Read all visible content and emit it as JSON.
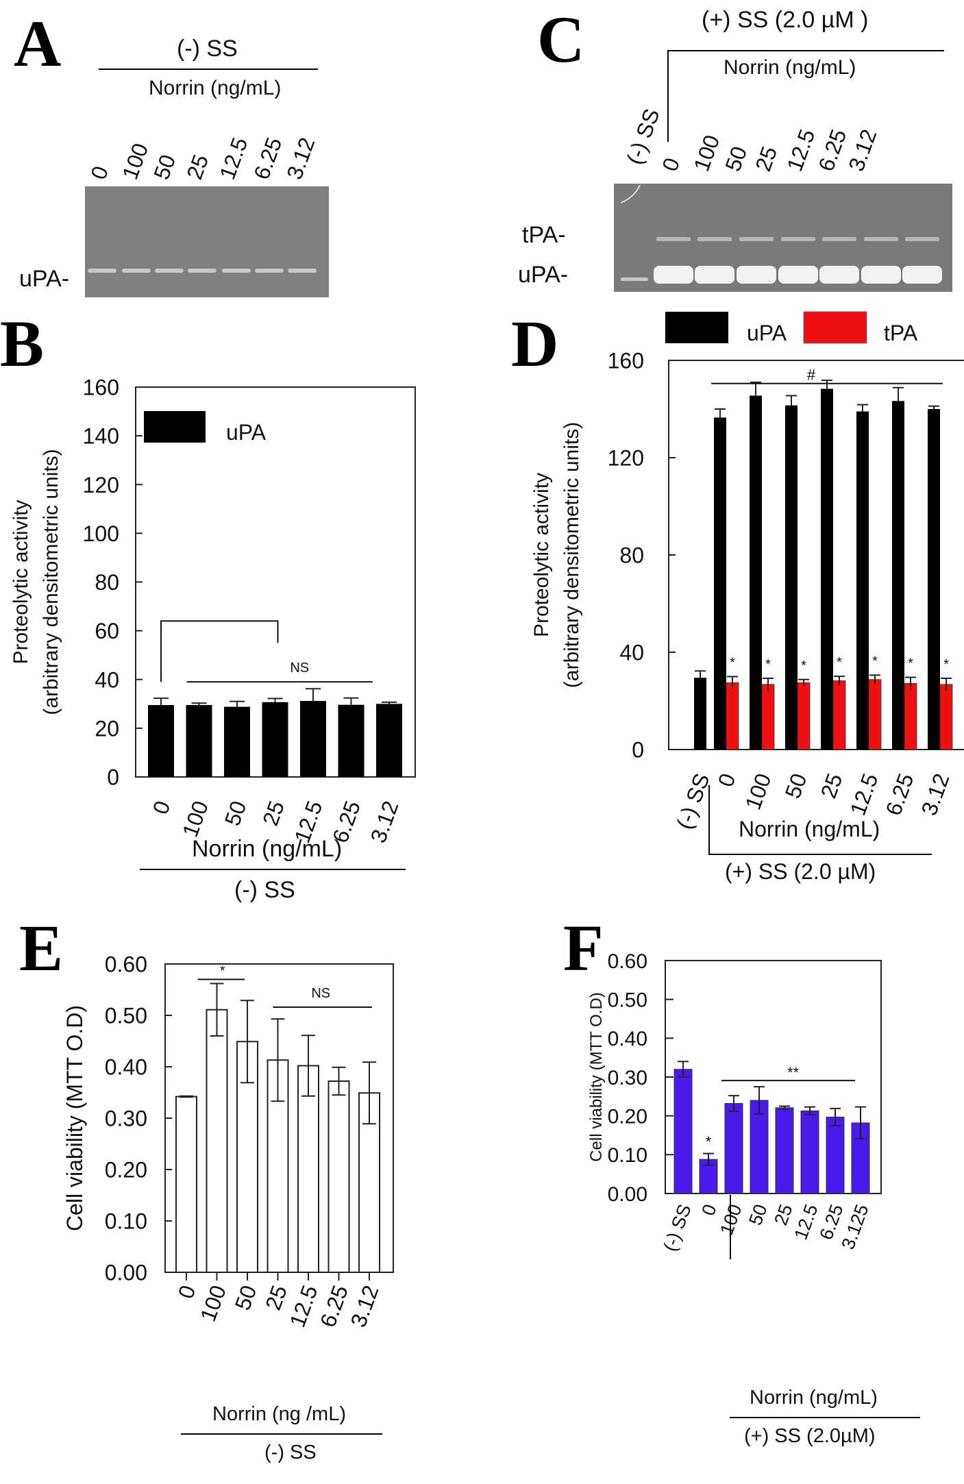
{
  "panels": {
    "A": {
      "letter": "A",
      "group_label": "(-) SS",
      "norrin_label": "Norrin (ng/mL)",
      "lanes": [
        "0",
        "100",
        "50",
        "25",
        "12.5",
        "6.25",
        "3.12"
      ],
      "band_label": "uPA-",
      "gel_color": "#808080"
    },
    "C": {
      "letter": "C",
      "group_label": "(+) SS (2.0 µM )",
      "norrin_label": "Norrin (ng/mL)",
      "control_lane": "(-) SS",
      "lanes": [
        "0",
        "100",
        "50",
        "25",
        "12.5",
        "6.25",
        "3.12"
      ],
      "band_labels": [
        "tPA-",
        "uPA-"
      ],
      "gel_color": "#7a7a7a"
    },
    "B": {
      "letter": "B",
      "group_label": "(-) SS",
      "norrin_label": "Norrin (ng/mL)"
    },
    "D": {
      "letter": "D",
      "group_label": "(+) SS (2.0 µM)",
      "norrin_label": "Norrin (ng/mL)"
    },
    "E": {
      "letter": "E",
      "group_label": "(-) SS",
      "norrin_label": "Norrin (ng /mL)"
    },
    "F": {
      "letter": "F",
      "group_label": "(+) SS (2.0µM)",
      "norrin_label": "Norrin (ng/mL)"
    }
  },
  "colors": {
    "black_bar": "#000000",
    "red_bar": "#ee1111",
    "blue_bar": "#4a1ae8",
    "open_bar": "#ffffff"
  },
  "chart_data": [
    {
      "id": "B",
      "type": "bar",
      "title": "",
      "xlabel": "Norrin (ng/mL)",
      "ylabel": "Proteolytic activity\n(arbitrary densitometric units)",
      "ylabel_lines": [
        "Proteolytic activity",
        "(arbitrary densitometric units)"
      ],
      "categories": [
        "0",
        "100",
        "50",
        "25",
        "12.5",
        "6.25",
        "3.12"
      ],
      "ylim": [
        0,
        160
      ],
      "yticks": [
        "0",
        "20",
        "40",
        "60",
        "80",
        "100",
        "120",
        "140",
        "160"
      ],
      "legend": {
        "position": "top-left",
        "entries": [
          "uPA"
        ]
      },
      "grid": false,
      "series": [
        {
          "name": "uPA",
          "values": [
            29.5,
            29.5,
            28.8,
            30.7,
            31.2,
            29.6,
            30.0
          ],
          "errors": [
            2.8,
            0.8,
            2.2,
            1.5,
            5.0,
            2.8,
            0.7
          ]
        }
      ],
      "annotations": [
        {
          "text": "NS",
          "span": [
            "100",
            "3.12"
          ]
        },
        {
          "text": "bracket",
          "span": [
            "0",
            "25"
          ]
        }
      ]
    },
    {
      "id": "D",
      "type": "bar",
      "title": "",
      "xlabel": "Norrin (ng/mL)",
      "ylabel_lines": [
        "Proteolytic activity",
        "(arbitrary densitometric units)"
      ],
      "categories": [
        "(-) SS",
        "0",
        "100",
        "50",
        "25",
        "12.5",
        "6.25",
        "3.12"
      ],
      "ylim": [
        0,
        160
      ],
      "yticks": [
        "0",
        "40",
        "80",
        "120",
        "160"
      ],
      "legend": {
        "position": "top",
        "entries": [
          "uPA",
          "tPA"
        ]
      },
      "grid": false,
      "series": [
        {
          "name": "uPA",
          "values": [
            29.5,
            136.5,
            145.5,
            141.5,
            148.3,
            139.0,
            143.3,
            140.0
          ],
          "errors": [
            2.8,
            3.5,
            5.5,
            4.0,
            3.5,
            2.8,
            5.5,
            1.2
          ]
        },
        {
          "name": "tPA",
          "values": [
            null,
            27.5,
            26.8,
            27.5,
            28.3,
            28.8,
            27.2,
            26.8
          ],
          "errors": [
            null,
            2.5,
            2.5,
            1.3,
            1.8,
            1.8,
            2.5,
            2.5
          ]
        }
      ],
      "annotations": [
        {
          "text": "#",
          "span": [
            "0",
            "3.12"
          ]
        },
        {
          "text": "*",
          "on": "tPA all treated"
        }
      ]
    },
    {
      "id": "E",
      "type": "bar",
      "title": "",
      "xlabel": "Norrin (ng /mL)",
      "ylabel": "Cell viability (MTT O.D)",
      "categories": [
        "0",
        "100",
        "50",
        "25",
        "12.5",
        "6.25",
        "3.12"
      ],
      "ylim": [
        0,
        0.6
      ],
      "yticks": [
        "0.00",
        "0.10",
        "0.20",
        "0.30",
        "0.40",
        "0.50",
        "0.60"
      ],
      "grid": false,
      "series": [
        {
          "name": "viability",
          "values": [
            0.342,
            0.511,
            0.449,
            0.413,
            0.402,
            0.372,
            0.349
          ],
          "errors": [
            0.001,
            0.051,
            0.08,
            0.08,
            0.059,
            0.027,
            0.06
          ]
        }
      ],
      "annotations": [
        {
          "text": "*",
          "span": [
            "100",
            "50"
          ]
        },
        {
          "text": "NS",
          "span": [
            "25",
            "3.12"
          ]
        }
      ]
    },
    {
      "id": "F",
      "type": "bar",
      "title": "",
      "xlabel": "Norrin (ng/mL)",
      "ylabel": "Cell viability (MTT O.D)",
      "categories": [
        "(-) SS",
        "0",
        "100",
        "50",
        "25",
        "12.5",
        "6.25",
        "3.125"
      ],
      "ylim": [
        0,
        0.6
      ],
      "yticks": [
        "0.00",
        "0.10",
        "0.20",
        "0.30",
        "0.40",
        "0.50",
        "0.60"
      ],
      "grid": false,
      "series": [
        {
          "name": "viability",
          "values": [
            0.32,
            0.088,
            0.232,
            0.24,
            0.221,
            0.213,
            0.197,
            0.182
          ],
          "errors": [
            0.02,
            0.015,
            0.02,
            0.035,
            0.004,
            0.01,
            0.022,
            0.041
          ]
        }
      ],
      "annotations": [
        {
          "text": "*",
          "on": "0"
        },
        {
          "text": "**",
          "span": [
            "100",
            "3.125"
          ]
        }
      ]
    }
  ]
}
